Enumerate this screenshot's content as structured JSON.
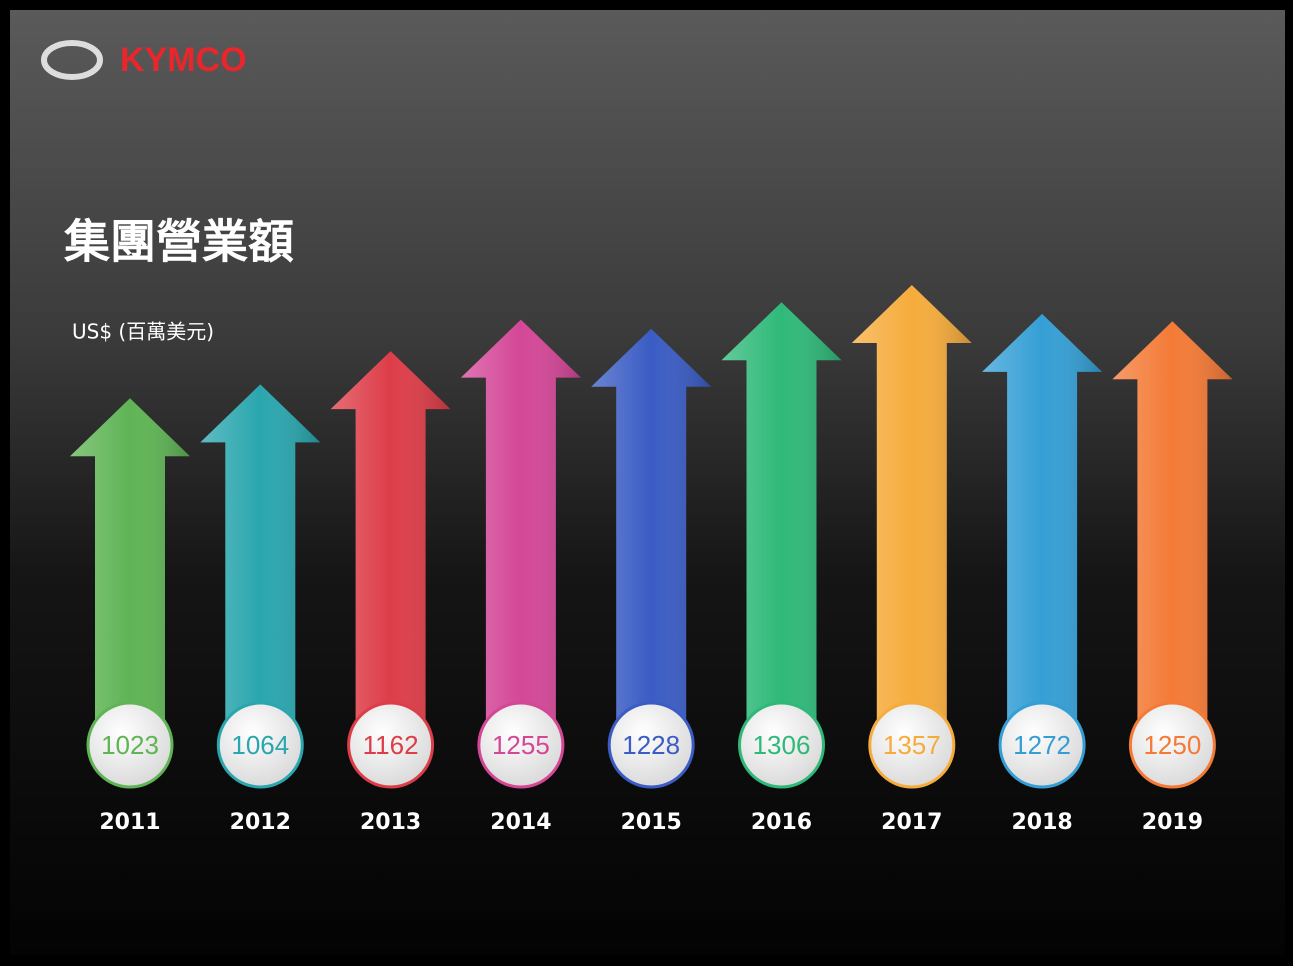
{
  "logo": "KYMCO",
  "chart_data": {
    "type": "bar",
    "title": "集團營業額",
    "y_label": "US$ (百萬美元)",
    "categories": [
      "2011",
      "2012",
      "2013",
      "2014",
      "2015",
      "2016",
      "2017",
      "2018",
      "2019"
    ],
    "values": [
      1023,
      1064,
      1162,
      1255,
      1228,
      1306,
      1357,
      1272,
      1250
    ],
    "colors": [
      "#5fb455",
      "#2aa6ae",
      "#dd3d48",
      "#d44797",
      "#3a5cc4",
      "#2fb979",
      "#f6ac3c",
      "#359fd5",
      "#f47a36"
    ]
  }
}
